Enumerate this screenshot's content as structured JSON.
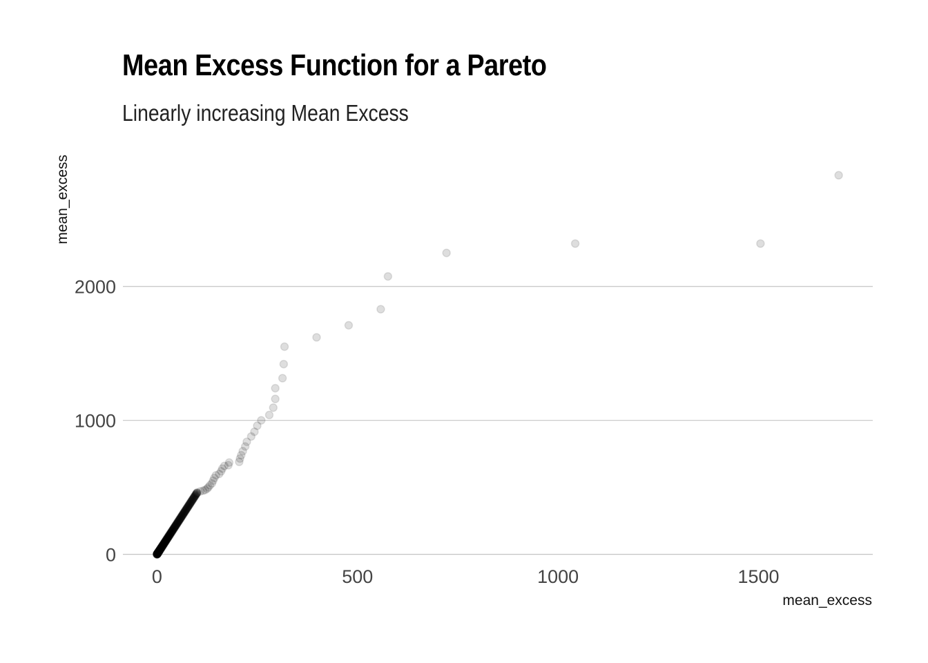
{
  "chart_data": {
    "type": "scatter",
    "title": "Mean Excess Function for a Pareto",
    "subtitle": "Linearly increasing Mean Excess",
    "xlabel": "mean_excess",
    "ylabel": "mean_excess",
    "xlim": [
      -85,
      1785
    ],
    "ylim": [
      -100,
      3030
    ],
    "x_ticks": [
      0,
      500,
      1000,
      1500
    ],
    "y_ticks": [
      0,
      1000,
      2000
    ],
    "x_tick_labels": [
      "0",
      "500",
      "1000",
      "1500"
    ],
    "y_tick_labels": [
      "0",
      "1000",
      "2000"
    ],
    "grid": "horizontal major lines",
    "legend": "none",
    "point_color": "#000000",
    "point_alpha": 0.13,
    "dense_segment": {
      "x_range": [
        0,
        100
      ],
      "slope": 4.6,
      "count": 240
    },
    "points": [
      {
        "x": 100,
        "y": 460
      },
      {
        "x": 108,
        "y": 470
      },
      {
        "x": 115,
        "y": 475
      },
      {
        "x": 120,
        "y": 480
      },
      {
        "x": 125,
        "y": 490
      },
      {
        "x": 128,
        "y": 500
      },
      {
        "x": 132,
        "y": 515
      },
      {
        "x": 137,
        "y": 530
      },
      {
        "x": 140,
        "y": 550
      },
      {
        "x": 143,
        "y": 570
      },
      {
        "x": 147,
        "y": 590
      },
      {
        "x": 155,
        "y": 600
      },
      {
        "x": 160,
        "y": 620
      },
      {
        "x": 163,
        "y": 640
      },
      {
        "x": 168,
        "y": 660
      },
      {
        "x": 178,
        "y": 665
      },
      {
        "x": 180,
        "y": 685
      },
      {
        "x": 205,
        "y": 690
      },
      {
        "x": 207,
        "y": 715
      },
      {
        "x": 210,
        "y": 740
      },
      {
        "x": 214,
        "y": 770
      },
      {
        "x": 220,
        "y": 805
      },
      {
        "x": 224,
        "y": 840
      },
      {
        "x": 235,
        "y": 880
      },
      {
        "x": 243,
        "y": 915
      },
      {
        "x": 250,
        "y": 960
      },
      {
        "x": 260,
        "y": 1000
      },
      {
        "x": 280,
        "y": 1040
      },
      {
        "x": 290,
        "y": 1095
      },
      {
        "x": 295,
        "y": 1160
      },
      {
        "x": 295,
        "y": 1240
      },
      {
        "x": 313,
        "y": 1315
      },
      {
        "x": 316,
        "y": 1420
      },
      {
        "x": 318,
        "y": 1550
      },
      {
        "x": 398,
        "y": 1620
      },
      {
        "x": 478,
        "y": 1710
      },
      {
        "x": 558,
        "y": 1830
      },
      {
        "x": 576,
        "y": 2075
      },
      {
        "x": 722,
        "y": 2250
      },
      {
        "x": 1043,
        "y": 2320
      },
      {
        "x": 1505,
        "y": 2320
      },
      {
        "x": 1700,
        "y": 2830
      }
    ]
  }
}
